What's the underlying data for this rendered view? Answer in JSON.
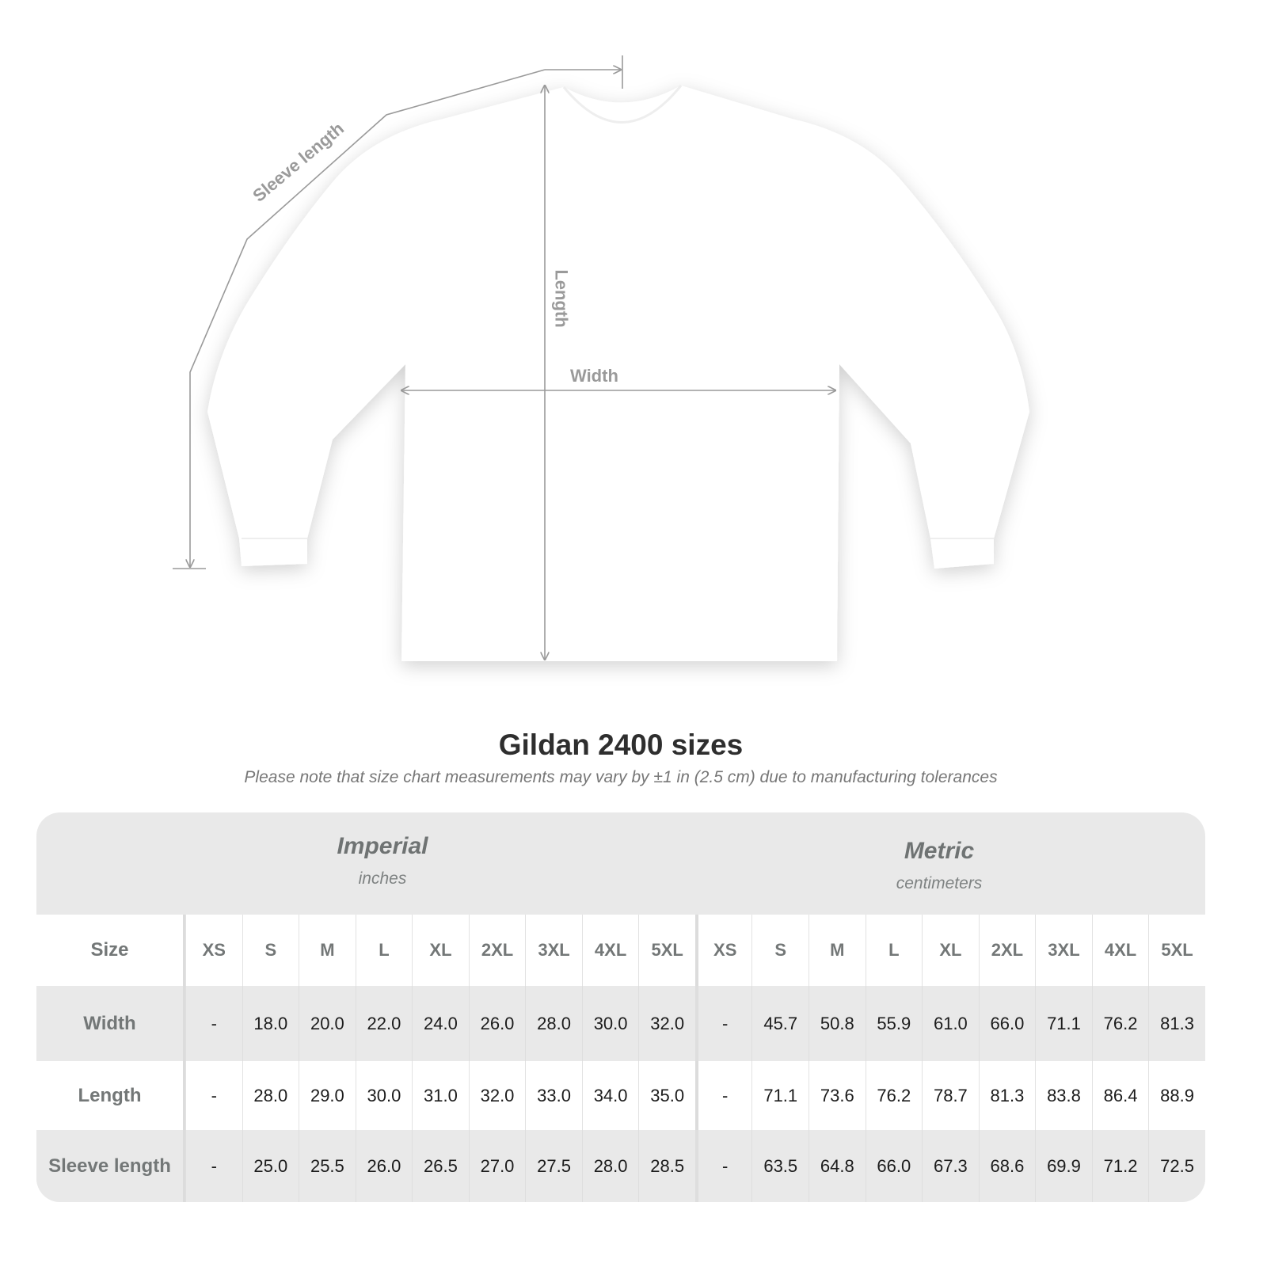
{
  "diagram": {
    "labels": {
      "sleeve": "Sleeve length",
      "length": "Length",
      "width": "Width"
    },
    "colors": {
      "shirt": "#ffffff",
      "lines": "#9a9a9a"
    }
  },
  "title": "Gildan 2400 sizes",
  "note": "Please note that size chart measurements may vary by ±1 in (2.5 cm) due to manufacturing tolerances",
  "table": {
    "imperial": {
      "name": "Imperial",
      "unit": "inches"
    },
    "metric": {
      "name": "Metric",
      "unit": "centimeters"
    },
    "size_label": "Size",
    "sizes": [
      "XS",
      "S",
      "M",
      "L",
      "XL",
      "2XL",
      "3XL",
      "4XL",
      "5XL"
    ],
    "rows": [
      {
        "label": "Width",
        "imperial": [
          "-",
          "18.0",
          "20.0",
          "22.0",
          "24.0",
          "26.0",
          "28.0",
          "30.0",
          "32.0"
        ],
        "metric": [
          "-",
          "45.7",
          "50.8",
          "55.9",
          "61.0",
          "66.0",
          "71.1",
          "76.2",
          "81.3"
        ]
      },
      {
        "label": "Length",
        "imperial": [
          "-",
          "28.0",
          "29.0",
          "30.0",
          "31.0",
          "32.0",
          "33.0",
          "34.0",
          "35.0"
        ],
        "metric": [
          "-",
          "71.1",
          "73.6",
          "76.2",
          "78.7",
          "81.3",
          "83.8",
          "86.4",
          "88.9"
        ]
      },
      {
        "label": "Sleeve length",
        "imperial": [
          "-",
          "25.0",
          "25.5",
          "26.0",
          "26.5",
          "27.0",
          "27.5",
          "28.0",
          "28.5"
        ],
        "metric": [
          "-",
          "63.5",
          "64.8",
          "66.0",
          "67.3",
          "68.6",
          "69.9",
          "71.2",
          "72.5"
        ]
      }
    ]
  }
}
